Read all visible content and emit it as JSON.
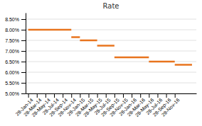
{
  "chart_data": {
    "type": "step",
    "title": "Rate",
    "x_start": [
      0,
      5,
      6,
      8,
      10,
      14,
      17
    ],
    "x_end": [
      5,
      6,
      8,
      10,
      14,
      17,
      19
    ],
    "values": [
      0.08,
      0.0765,
      0.075,
      0.0725,
      0.067,
      0.065,
      0.0635
    ],
    "color": "#E8741E",
    "xlim": [
      -0.3,
      19.5
    ],
    "xticks": [
      {
        "value": 0,
        "label": "28-Jan-14"
      },
      {
        "value": 1,
        "label": "28-Mar-14"
      },
      {
        "value": 2,
        "label": "28-May-14"
      },
      {
        "value": 3,
        "label": "28-Jul-14"
      },
      {
        "value": 4,
        "label": "28-Sep-14"
      },
      {
        "value": 5,
        "label": "28-Nov-14"
      },
      {
        "value": 6,
        "label": "28-Jan-15"
      },
      {
        "value": 7,
        "label": "28-Mar-15"
      },
      {
        "value": 8,
        "label": "28-May-15"
      },
      {
        "value": 9,
        "label": "28-Jul-15"
      },
      {
        "value": 10,
        "label": "28-Sep-15"
      },
      {
        "value": 11,
        "label": "28-Nov-15"
      },
      {
        "value": 12,
        "label": "28-Jan-16"
      },
      {
        "value": 13,
        "label": "28-Mar-16"
      },
      {
        "value": 14,
        "label": "28-May-16"
      },
      {
        "value": 15,
        "label": "28-Jul-16"
      },
      {
        "value": 16,
        "label": "28-Sep-16"
      },
      {
        "value": 17,
        "label": "28-Nov-16"
      }
    ],
    "ylim": [
      0.05,
      0.088
    ],
    "yticks": [
      {
        "value": 0.05,
        "label": "5.00%"
      },
      {
        "value": 0.055,
        "label": "5.50%"
      },
      {
        "value": 0.06,
        "label": "6.00%"
      },
      {
        "value": 0.065,
        "label": "6.50%"
      },
      {
        "value": 0.07,
        "label": "7.00%"
      },
      {
        "value": 0.075,
        "label": "7.50%"
      },
      {
        "value": 0.08,
        "label": "8.00%"
      },
      {
        "value": 0.085,
        "label": "8.50%"
      }
    ],
    "grid": true
  }
}
